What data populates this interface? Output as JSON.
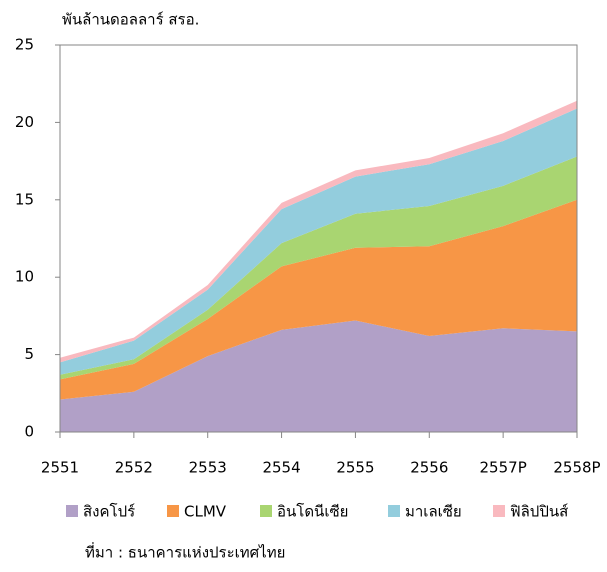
{
  "chart_data": {
    "type": "stacked_area",
    "y_axis_label": "พันล้านดอลลาร์ สรอ.",
    "source": "ที่มา : ธนาคารแห่งประเทศไทย",
    "categories": [
      "2551",
      "2552",
      "2553",
      "2554",
      "2555",
      "2556",
      "2557P",
      "2558P"
    ],
    "series": [
      {
        "name": "สิงคโปร์",
        "color": "#b1a0c7",
        "values": [
          2.1,
          2.6,
          4.9,
          6.6,
          7.2,
          6.2,
          6.7,
          6.5
        ]
      },
      {
        "name": "CLMV",
        "color": "#f79646",
        "values": [
          1.3,
          1.8,
          2.4,
          4.1,
          4.7,
          5.8,
          6.6,
          8.5
        ]
      },
      {
        "name": "อินโดนีเซีย",
        "color": "#a9d571",
        "values": [
          0.3,
          0.3,
          0.6,
          1.5,
          2.2,
          2.6,
          2.6,
          2.8
        ]
      },
      {
        "name": "มาเลเซีย",
        "color": "#93cddd",
        "values": [
          0.8,
          1.2,
          1.3,
          2.2,
          2.4,
          2.7,
          2.9,
          3.1
        ]
      },
      {
        "name": "ฟิลิปปินส์",
        "color": "#f9b9bf",
        "values": [
          0.3,
          0.2,
          0.3,
          0.4,
          0.4,
          0.4,
          0.5,
          0.5
        ]
      }
    ],
    "ylim": [
      0,
      25
    ],
    "yticks": [
      0,
      5,
      10,
      15,
      20,
      25
    ],
    "grid": false,
    "legend": "bottom"
  }
}
